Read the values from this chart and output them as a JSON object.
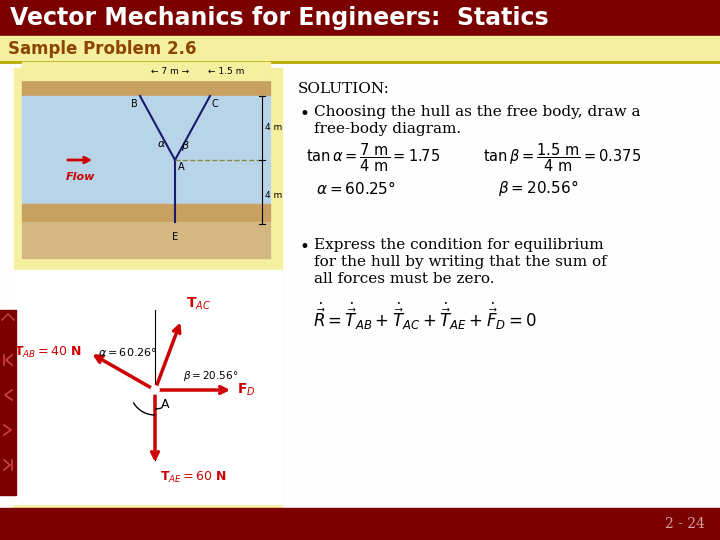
{
  "title": "Vector Mechanics for Engineers:  Statics",
  "subtitle": "Sample Problem 2.6",
  "title_bg": "#7B0000",
  "subtitle_bg": "#F5F0A0",
  "content_bg": "#FFFFFF",
  "title_color": "#FFFFFF",
  "subtitle_color": "#8B4500",
  "footer_bg": "#7B0000",
  "footer_text": "2 - 24",
  "footer_color": "#D4A0A0",
  "solution_label": "SOLUTION:",
  "bullet1_line1": "Choosing the hull as the free body, draw a",
  "bullet1_line2": "free-body diagram.",
  "bullet2_line1": "Express the condition for equilibrium",
  "bullet2_line2": "for the hull by writing that the sum of",
  "bullet2_line3": "all forces must be zero.",
  "nav_bg": "#7B0000",
  "nav_icon_color": "#CC4444",
  "left_bg": "#F5F0A0",
  "water_color": "#B8D4E8",
  "sand_top_color": "#C8A060",
  "sand_bot_color": "#C8A060",
  "line_color": "#1A1A6E",
  "arrow_color": "#CC0000"
}
